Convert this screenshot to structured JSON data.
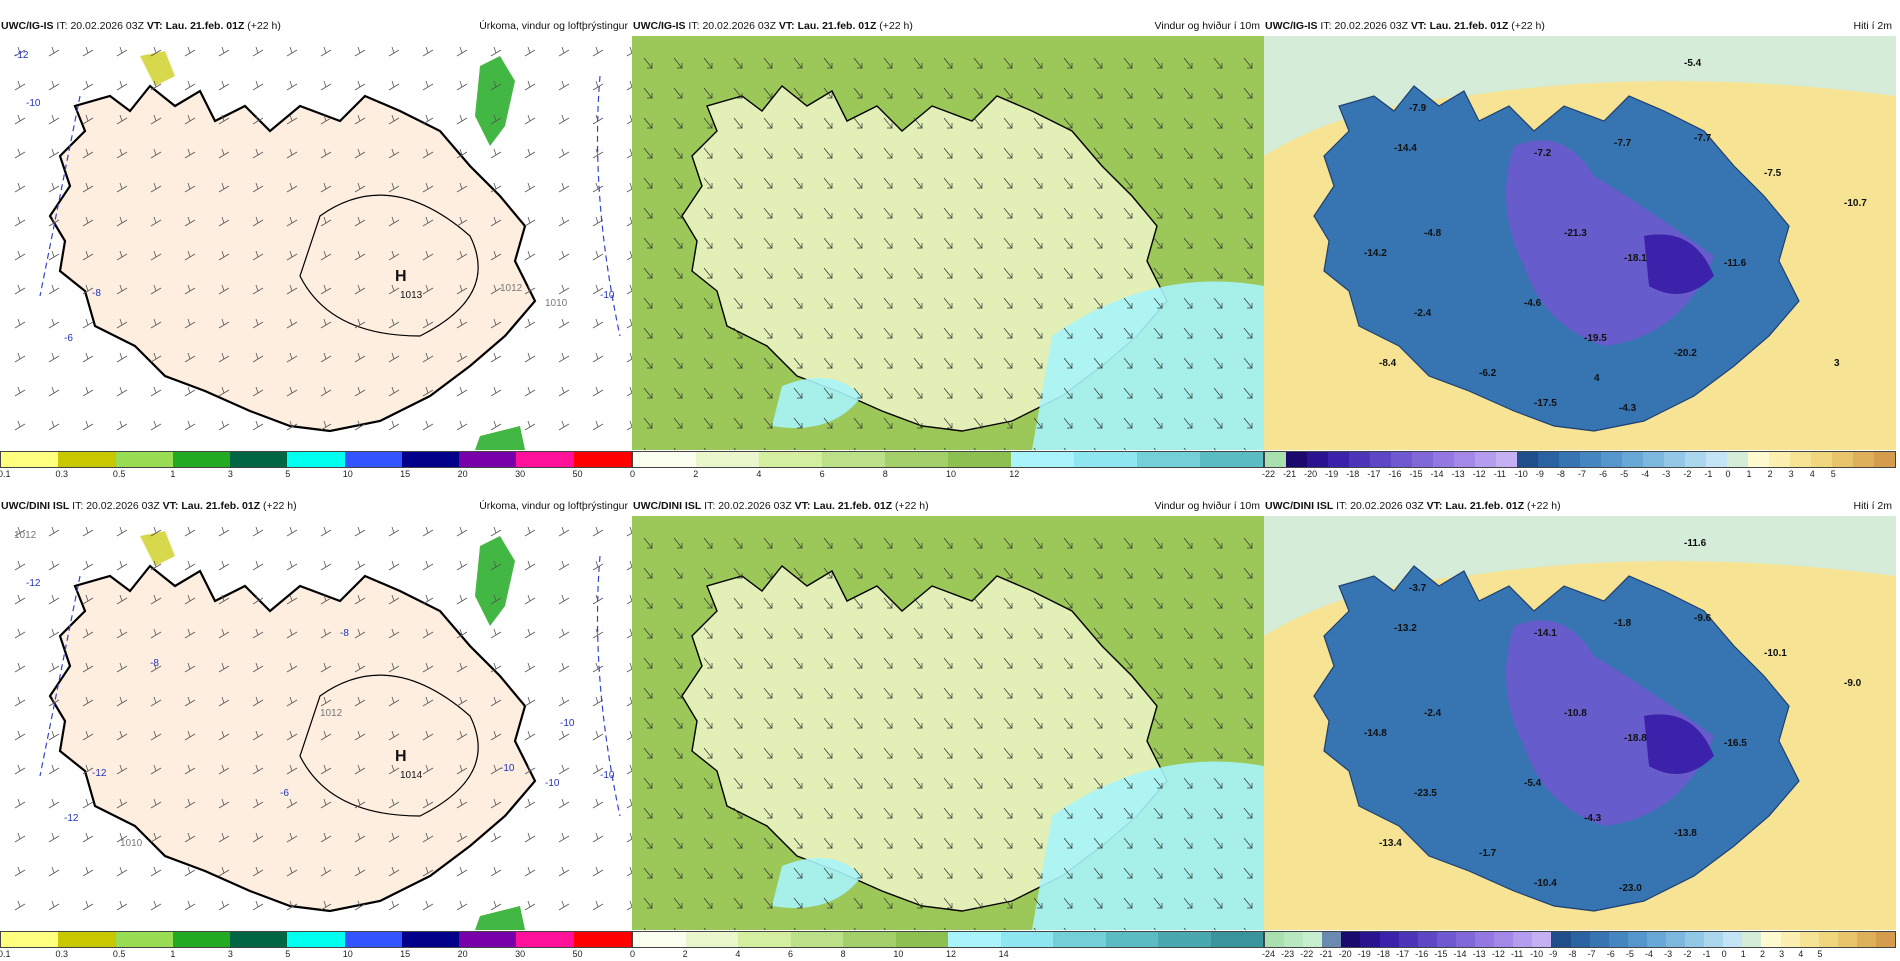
{
  "panels": [
    {
      "model": "UWC/IG-IS",
      "it_label": "IT:",
      "it": "20.02.2026 03Z",
      "vt_label": "VT:",
      "vt": "Lau. 21.feb. 01Z",
      "lead": "(+22 h)",
      "title": "Úrkoma, vindur og loftþrýstingur",
      "kind": "precip",
      "map_labels": [
        {
          "t": "H",
          "k": "H"
        },
        {
          "t": "1013",
          "k": "p"
        },
        {
          "t": "-12",
          "k": "n"
        },
        {
          "t": "-10",
          "k": "n"
        },
        {
          "t": "-8",
          "k": "n"
        },
        {
          "t": "-6",
          "k": "n"
        },
        {
          "t": "-10",
          "k": "n"
        },
        {
          "t": "1010",
          "k": "g"
        },
        {
          "t": "1012",
          "k": "g"
        }
      ],
      "colorbar": {
        "colors": [
          "#ffff80",
          "#c8c800",
          "#99dd55",
          "#22aa22",
          "#006644",
          "#00ffee",
          "#3355ff",
          "#000088",
          "#7700aa",
          "#ff1199",
          "#ff0000"
        ],
        "labels": [
          "0.1",
          "0.3",
          "0.5",
          "1",
          "3",
          "5",
          "10",
          "15",
          "20",
          "30",
          "50"
        ]
      }
    },
    {
      "model": "UWC/IG-IS",
      "it_label": "IT:",
      "it": "20.02.2026 03Z",
      "vt_label": "VT:",
      "vt": "Lau. 21.feb. 01Z",
      "lead": "(+22 h)",
      "title": "Vindur og hviður í 10m",
      "kind": "wind",
      "map_labels": [],
      "colorbar": {
        "colors": [
          "#fafff0",
          "#eaf7cc",
          "#d4eea0",
          "#bce088",
          "#a3d068",
          "#8cc050",
          "#a8f4fa",
          "#8ee6f0",
          "#74d0d8",
          "#5cbcc4"
        ],
        "labels": [
          "0",
          "2",
          "4",
          "6",
          "8",
          "10",
          "12"
        ]
      }
    },
    {
      "model": "UWC/IG-IS",
      "it_label": "IT:",
      "it": "20.02.2026 03Z",
      "vt_label": "VT:",
      "vt": "Lau. 21.feb. 01Z",
      "lead": "(+22 h)",
      "title": "Hiti í 2m",
      "kind": "temp",
      "map_labels": [
        {
          "t": "-5.4"
        },
        {
          "t": "-7.9"
        },
        {
          "t": "-14.4"
        },
        {
          "t": "-7.2"
        },
        {
          "t": "-7.7"
        },
        {
          "t": "-7.7"
        },
        {
          "t": "-7.5"
        },
        {
          "t": "-10.7"
        },
        {
          "t": "-21.3"
        },
        {
          "t": "-4.8"
        },
        {
          "t": "-14.2"
        },
        {
          "t": "-18.1"
        },
        {
          "t": "-11.6"
        },
        {
          "t": "-2.4"
        },
        {
          "t": "-4.6"
        },
        {
          "t": "-19.5"
        },
        {
          "t": "-20.2"
        },
        {
          "t": "-8.4"
        },
        {
          "t": "-6.2"
        },
        {
          "t": "-17.5"
        },
        {
          "t": "-4.3"
        },
        {
          "t": "3"
        },
        {
          "t": "4"
        }
      ],
      "colorbar": {
        "colors": [
          "#a8e0b0",
          "#1a0a6e",
          "#2b1390",
          "#3c22aa",
          "#4e34b8",
          "#5f46c4",
          "#7058d0",
          "#8068d8",
          "#9278e0",
          "#a488e8",
          "#b49cee",
          "#c4b0f2",
          "#1f4e8a",
          "#2a62a2",
          "#3674b2",
          "#4486c0",
          "#5596cc",
          "#68a8d6",
          "#7cb8de",
          "#92c8e6",
          "#aad6ee",
          "#c2e4f4",
          "#d4ecd8",
          "#fffad0",
          "#fbf0b0",
          "#f6e494",
          "#f0d67c",
          "#e8c46a",
          "#dfb05a",
          "#d49c4c"
        ],
        "labels": [
          "-22",
          "-21",
          "-20",
          "-19",
          "-18",
          "-17",
          "-16",
          "-15",
          "-14",
          "-13",
          "-12",
          "-11",
          "-10",
          "-9",
          "-8",
          "-7",
          "-6",
          "-5",
          "-4",
          "-3",
          "-2",
          "-1",
          "0",
          "1",
          "2",
          "3",
          "4",
          "5"
        ]
      }
    },
    {
      "model": "UWC/DINI ISL",
      "it_label": "IT:",
      "it": "20.02.2026 03Z",
      "vt_label": "VT:",
      "vt": "Lau. 21.feb. 01Z",
      "lead": "(+22 h)",
      "title": "Úrkoma, vindur og loftþrýstingur",
      "kind": "precip",
      "map_labels": [
        {
          "t": "H",
          "k": "H"
        },
        {
          "t": "1014",
          "k": "p"
        },
        {
          "t": "1012",
          "k": "g"
        },
        {
          "t": "-12",
          "k": "n"
        },
        {
          "t": "-12",
          "k": "n"
        },
        {
          "t": "-12",
          "k": "n"
        },
        {
          "t": "-10",
          "k": "n"
        },
        {
          "t": "-10",
          "k": "n"
        },
        {
          "t": "-10",
          "k": "n"
        },
        {
          "t": "-8",
          "k": "n"
        },
        {
          "t": "-10",
          "k": "n"
        },
        {
          "t": "-6",
          "k": "n"
        },
        {
          "t": "-8",
          "k": "n"
        },
        {
          "t": "1010",
          "k": "g"
        },
        {
          "t": "1012",
          "k": "g"
        }
      ],
      "colorbar": {
        "colors": [
          "#ffff80",
          "#c8c800",
          "#99dd55",
          "#22aa22",
          "#006644",
          "#00ffee",
          "#3355ff",
          "#000088",
          "#7700aa",
          "#ff1199",
          "#ff0000"
        ],
        "labels": [
          "0.1",
          "0.3",
          "0.5",
          "1",
          "3",
          "5",
          "10",
          "15",
          "20",
          "30",
          "50"
        ]
      }
    },
    {
      "model": "UWC/DINI ISL",
      "it_label": "IT:",
      "it": "20.02.2026 03Z",
      "vt_label": "VT:",
      "vt": "Lau. 21.feb. 01Z",
      "lead": "(+22 h)",
      "title": "Vindur og hviður í 10m",
      "kind": "wind",
      "map_labels": [],
      "colorbar": {
        "colors": [
          "#fafff0",
          "#eaf7cc",
          "#d4eea0",
          "#bce088",
          "#a3d068",
          "#8cc050",
          "#a8f4fa",
          "#8ee6f0",
          "#74d0d8",
          "#5cbcc4",
          "#4aa8b0",
          "#3a949c"
        ],
        "labels": [
          "0",
          "2",
          "4",
          "6",
          "8",
          "10",
          "12",
          "14"
        ]
      }
    },
    {
      "model": "UWC/DINI ISL",
      "it_label": "IT:",
      "it": "20.02.2026 03Z",
      "vt_label": "VT:",
      "vt": "Lau. 21.feb. 01Z",
      "lead": "(+22 h)",
      "title": "Hiti í 2m",
      "kind": "temp",
      "map_labels": [
        {
          "t": "-11.6"
        },
        {
          "t": "-3.7"
        },
        {
          "t": "-13.2"
        },
        {
          "t": "-14.1"
        },
        {
          "t": "-1.8"
        },
        {
          "t": "-9.6"
        },
        {
          "t": "-10.1"
        },
        {
          "t": "-9.0"
        },
        {
          "t": "-10.8"
        },
        {
          "t": "-2.4"
        },
        {
          "t": "-14.8"
        },
        {
          "t": "-18.8"
        },
        {
          "t": "-16.5"
        },
        {
          "t": "-23.5"
        },
        {
          "t": "-5.4"
        },
        {
          "t": "-4.3"
        },
        {
          "t": "-13.8"
        },
        {
          "t": "-13.4"
        },
        {
          "t": "-1.7"
        },
        {
          "t": "-10.4"
        },
        {
          "t": "-23.0"
        }
      ],
      "colorbar": {
        "colors": [
          "#a8e0b0",
          "#b8e8c0",
          "#c8eed0",
          "#6a8ab0",
          "#1a0a6e",
          "#2b1390",
          "#3c22aa",
          "#4e34b8",
          "#5f46c4",
          "#7058d0",
          "#8068d8",
          "#9278e0",
          "#a488e8",
          "#b49cee",
          "#c4b0f2",
          "#1f4e8a",
          "#2a62a2",
          "#3674b2",
          "#4486c0",
          "#5596cc",
          "#68a8d6",
          "#7cb8de",
          "#92c8e6",
          "#aad6ee",
          "#c2e4f4",
          "#d4ecd8",
          "#fffad0",
          "#fbf0b0",
          "#f6e494",
          "#f0d67c",
          "#e8c46a",
          "#dfb05a",
          "#d49c4c"
        ],
        "labels": [
          "-24",
          "-23",
          "-22",
          "-21",
          "-20",
          "-19",
          "-18",
          "-17",
          "-16",
          "-15",
          "-14",
          "-13",
          "-12",
          "-11",
          "-10",
          "-9",
          "-8",
          "-7",
          "-6",
          "-5",
          "-4",
          "-3",
          "-2",
          "-1",
          "0",
          "1",
          "2",
          "3",
          "4",
          "5"
        ]
      }
    }
  ]
}
